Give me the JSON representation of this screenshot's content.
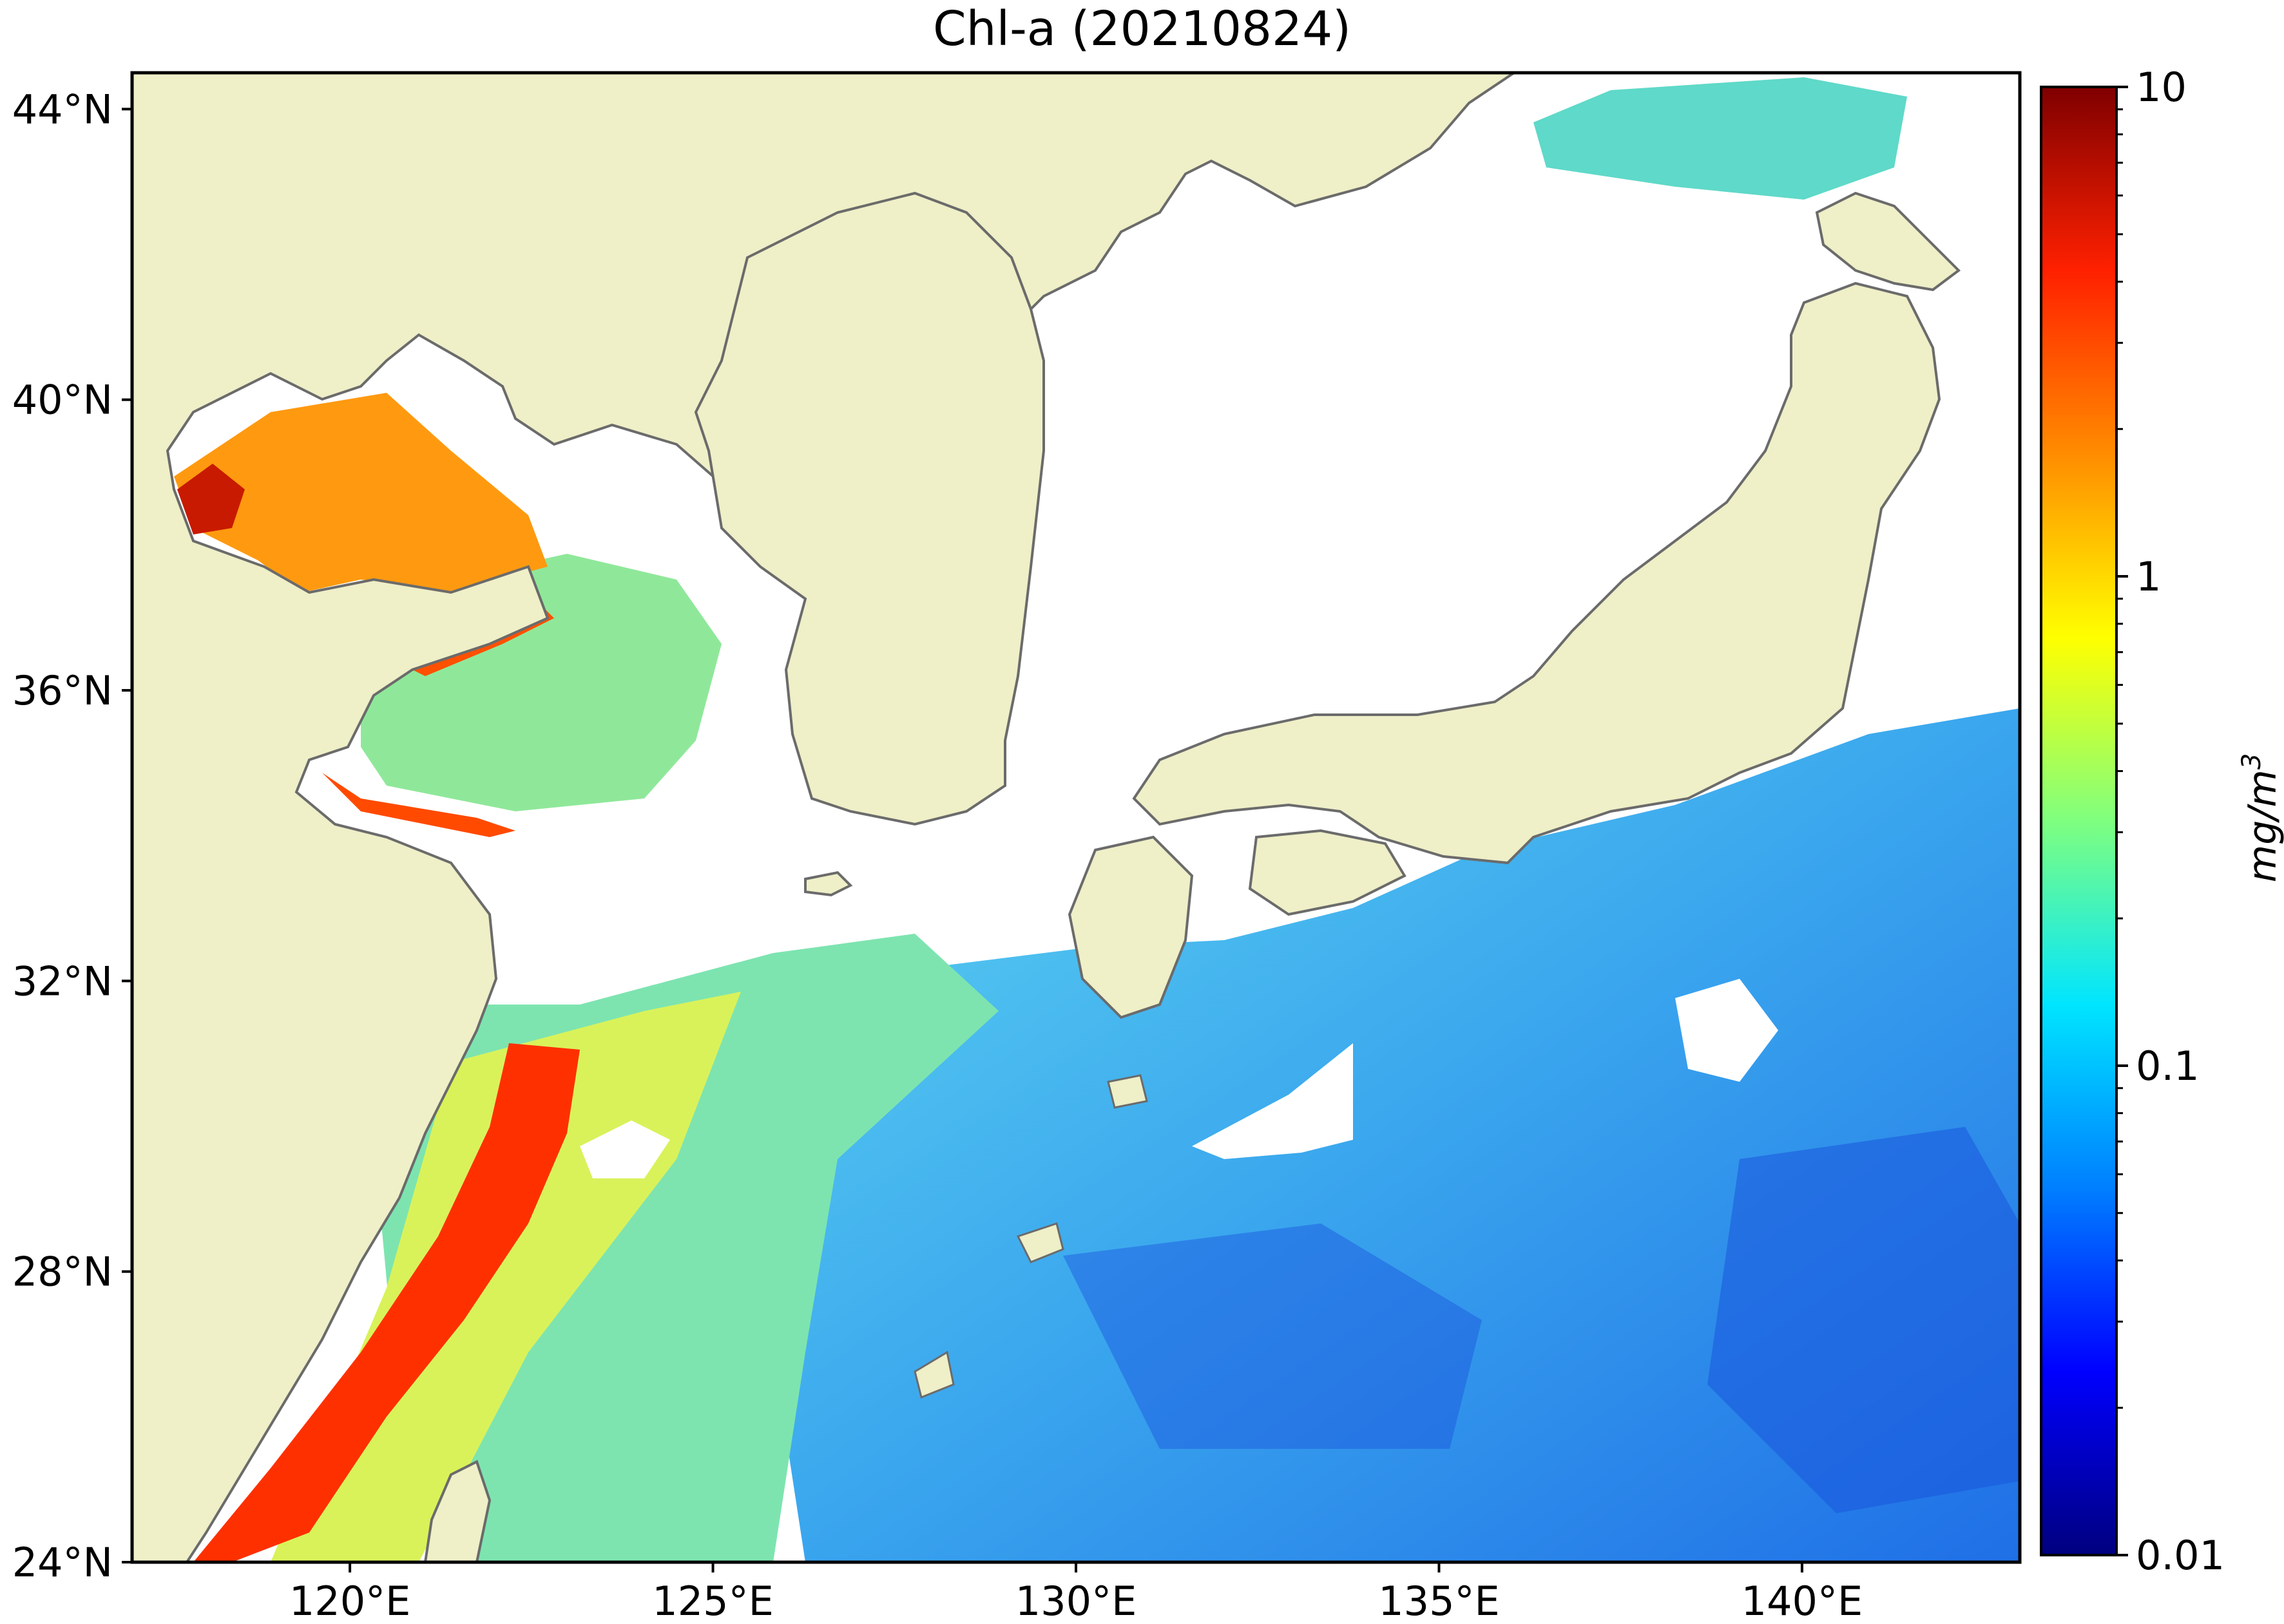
{
  "title": "Chl-a (20210824)",
  "colors": {
    "land": "#efefc8",
    "coast": "#6b6b6b",
    "cloud": "#ffffff",
    "colormap": [
      "#00007f",
      "#0000ff",
      "#007fff",
      "#00e5ff",
      "#7fff7f",
      "#ffff00",
      "#ff8c00",
      "#ff2000",
      "#7f0000"
    ]
  },
  "map": {
    "lon_range": [
      117,
      143
    ],
    "lat_range": [
      24,
      44.5
    ],
    "lon_ticks": [
      {
        "value": 120,
        "label": "120°E"
      },
      {
        "value": 125,
        "label": "125°E"
      },
      {
        "value": 130,
        "label": "130°E"
      },
      {
        "value": 135,
        "label": "135°E"
      },
      {
        "value": 140,
        "label": "140°E"
      }
    ],
    "lat_ticks": [
      {
        "value": 24,
        "label": "24°N"
      },
      {
        "value": 28,
        "label": "28°N"
      },
      {
        "value": 32,
        "label": "32°N"
      },
      {
        "value": 36,
        "label": "36°N"
      },
      {
        "value": 40,
        "label": "40°N"
      },
      {
        "value": 44,
        "label": "44°N"
      }
    ]
  },
  "colorbar": {
    "scale": "log",
    "range": [
      0.01,
      10
    ],
    "unit_label": "mg/m",
    "unit_superscript": "3",
    "ticks": [
      {
        "value": 10,
        "label": "10"
      },
      {
        "value": 1,
        "label": "1"
      },
      {
        "value": 0.1,
        "label": "0.1"
      },
      {
        "value": 0.01,
        "label": "0.01"
      }
    ]
  }
}
